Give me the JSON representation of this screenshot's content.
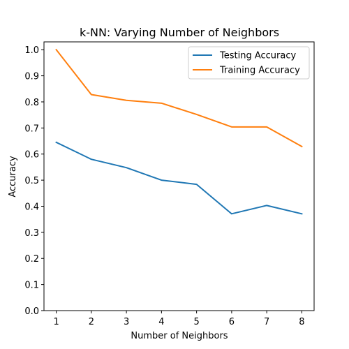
{
  "chart_data": {
    "type": "line",
    "title": "k-NN: Varying Number of Neighbors",
    "xlabel": "Number of Neighbors",
    "ylabel": "Accuracy",
    "x": [
      1,
      2,
      3,
      4,
      5,
      6,
      7,
      8
    ],
    "xticks": [
      "1",
      "2",
      "3",
      "4",
      "5",
      "6",
      "7",
      "8"
    ],
    "yticks": [
      "0.0",
      "0.1",
      "0.2",
      "0.3",
      "0.4",
      "0.5",
      "0.6",
      "0.7",
      "0.8",
      "0.9",
      "1.0"
    ],
    "xlim": [
      0.65,
      8.35
    ],
    "ylim": [
      0.0,
      1.03
    ],
    "grid": false,
    "legend_position": "top-right",
    "series": [
      {
        "name": "Testing Accuracy",
        "color": "#1f77b4",
        "values": [
          0.645,
          0.58,
          0.548,
          0.5,
          0.484,
          0.371,
          0.403,
          0.371
        ]
      },
      {
        "name": "Training Accuracy",
        "color": "#ff7f0e",
        "values": [
          1.0,
          0.828,
          0.806,
          0.795,
          0.752,
          0.704,
          0.704,
          0.629
        ]
      }
    ]
  }
}
